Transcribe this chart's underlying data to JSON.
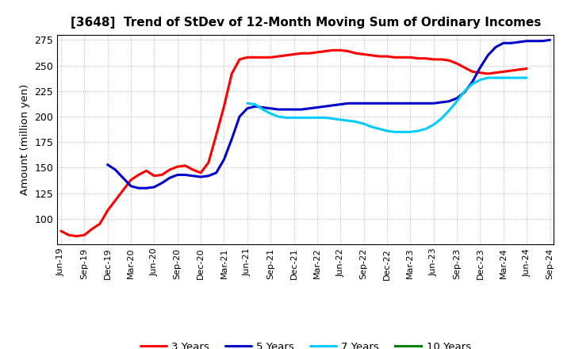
{
  "title": "[3648]  Trend of StDev of 12-Month Moving Sum of Ordinary Incomes",
  "ylabel": "Amount (million yen)",
  "ylim": [
    75,
    280
  ],
  "yticks": [
    100,
    125,
    150,
    175,
    200,
    225,
    250,
    275
  ],
  "background_color": "#ffffff",
  "grid_color": "#bbbbbb",
  "series_order": [
    "3 Years",
    "5 Years",
    "7 Years",
    "10 Years"
  ],
  "series": {
    "3 Years": {
      "color": "#ff0000",
      "x": [
        0,
        1,
        2,
        3,
        4,
        5,
        6,
        7,
        8,
        9,
        10,
        11,
        12,
        13,
        14,
        15,
        16,
        17,
        18,
        19,
        20,
        21,
        22,
        23,
        24,
        25,
        26,
        27,
        28,
        29,
        30,
        31,
        32,
        33,
        34,
        35,
        36,
        37,
        38,
        39,
        40,
        41,
        42,
        43,
        44,
        45,
        46,
        47,
        48,
        49,
        50,
        51,
        52,
        53,
        54,
        55,
        56,
        57,
        58,
        59,
        60
      ],
      "y": [
        88,
        84,
        83,
        84,
        90,
        95,
        108,
        118,
        128,
        138,
        143,
        147,
        142,
        143,
        148,
        151,
        152,
        148,
        145,
        155,
        182,
        210,
        242,
        256,
        258,
        258,
        258,
        258,
        259,
        260,
        261,
        262,
        262,
        263,
        264,
        265,
        265,
        264,
        262,
        261,
        260,
        259,
        259,
        258,
        258,
        258,
        257,
        257,
        256,
        256,
        255,
        252,
        248,
        244,
        243,
        242,
        243,
        244,
        245,
        246,
        247
      ]
    },
    "5 Years": {
      "color": "#0000cc",
      "x": [
        6,
        7,
        8,
        9,
        10,
        11,
        12,
        13,
        14,
        15,
        16,
        17,
        18,
        19,
        20,
        21,
        22,
        23,
        24,
        25,
        26,
        27,
        28,
        29,
        30,
        31,
        32,
        33,
        34,
        35,
        36,
        37,
        38,
        39,
        40,
        41,
        42,
        43,
        44,
        45,
        46,
        47,
        48,
        49,
        50,
        51,
        52,
        53,
        54,
        55,
        56,
        57,
        58,
        59,
        60,
        61,
        62,
        63
      ],
      "y": [
        153,
        148,
        140,
        132,
        130,
        130,
        131,
        135,
        140,
        143,
        143,
        142,
        141,
        142,
        145,
        158,
        178,
        200,
        208,
        210,
        209,
        208,
        207,
        207,
        207,
        207,
        208,
        209,
        210,
        211,
        212,
        213,
        213,
        213,
        213,
        213,
        213,
        213,
        213,
        213,
        213,
        213,
        213,
        214,
        215,
        218,
        224,
        234,
        248,
        260,
        268,
        272,
        272,
        273,
        274,
        274,
        274,
        275
      ]
    },
    "7 Years": {
      "color": "#00ccff",
      "x": [
        24,
        25,
        26,
        27,
        28,
        29,
        30,
        31,
        32,
        33,
        34,
        35,
        36,
        37,
        38,
        39,
        40,
        41,
        42,
        43,
        44,
        45,
        46,
        47,
        48,
        49,
        50,
        51,
        52,
        53,
        54,
        55,
        56,
        57,
        58,
        59,
        60
      ],
      "y": [
        213,
        212,
        207,
        203,
        200,
        199,
        199,
        199,
        199,
        199,
        199,
        198,
        197,
        196,
        195,
        193,
        190,
        188,
        186,
        185,
        185,
        185,
        186,
        188,
        192,
        198,
        206,
        215,
        225,
        232,
        236,
        238,
        238,
        238,
        238,
        238,
        238
      ]
    },
    "10 Years": {
      "color": "#008000",
      "x": [],
      "y": []
    }
  },
  "xtick_labels": [
    "Jun-19",
    "Sep-19",
    "Dec-19",
    "Mar-20",
    "Jun-20",
    "Sep-20",
    "Dec-20",
    "Mar-21",
    "Jun-21",
    "Sep-21",
    "Dec-21",
    "Mar-22",
    "Jun-22",
    "Sep-22",
    "Dec-22",
    "Mar-23",
    "Jun-23",
    "Sep-23",
    "Dec-23",
    "Mar-24",
    "Jun-24",
    "Sep-24"
  ],
  "xtick_positions": [
    0,
    3,
    6,
    9,
    12,
    15,
    18,
    21,
    24,
    27,
    30,
    33,
    36,
    39,
    42,
    45,
    48,
    51,
    54,
    57,
    60,
    63
  ]
}
